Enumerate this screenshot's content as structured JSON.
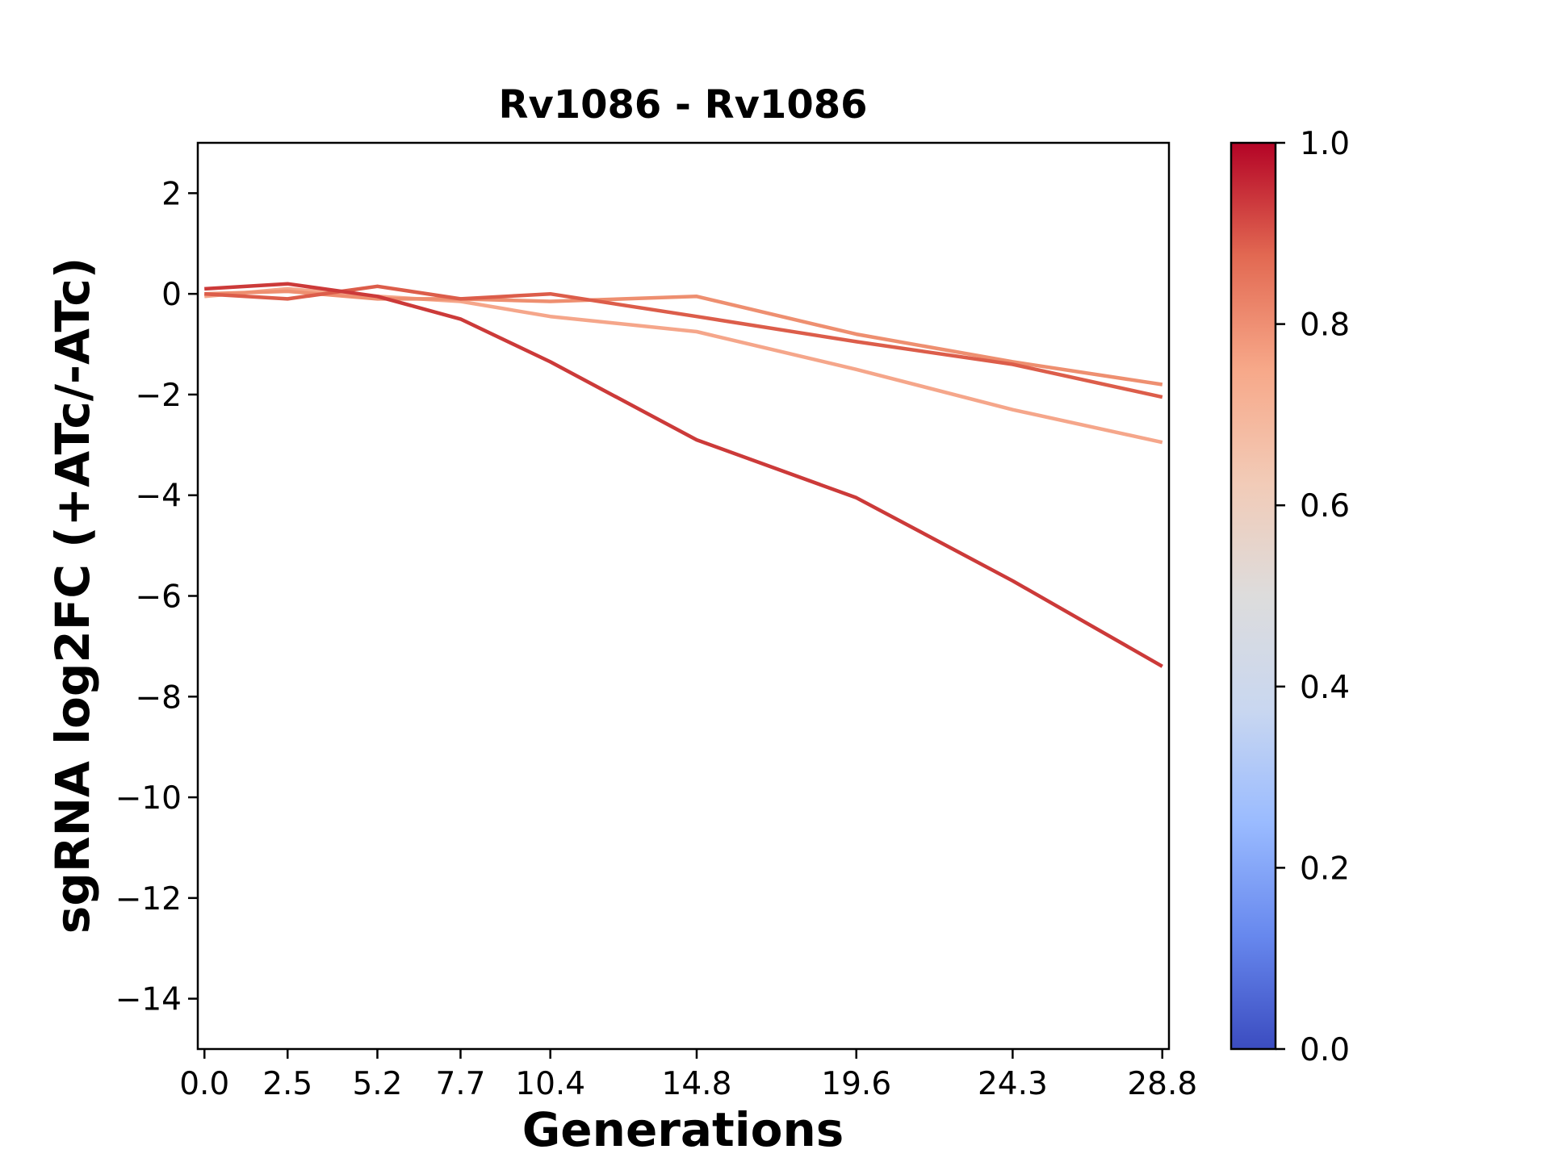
{
  "chart_data": {
    "type": "line",
    "title": "Rv1086 - Rv1086",
    "xlabel": "Generations",
    "ylabel": "sgRNA log2FC (+ATc/-ATc)",
    "x": [
      0.0,
      2.5,
      5.2,
      7.7,
      10.4,
      14.8,
      19.6,
      24.3,
      28.8
    ],
    "x_tick_labels": [
      "0.0",
      "2.5",
      "5.2",
      "7.7",
      "10.4",
      "14.8",
      "19.6",
      "24.3",
      "28.8"
    ],
    "xlim": [
      -0.2,
      29.0
    ],
    "ylim": [
      -15,
      3
    ],
    "y_ticks": [
      2,
      0,
      -2,
      -4,
      -6,
      -8,
      -10,
      -12,
      -14
    ],
    "y_tick_labels": [
      "2",
      "0",
      "−2",
      "−4",
      "−6",
      "−8",
      "−10",
      "−12",
      "−14"
    ],
    "grid": false,
    "series": [
      {
        "color_value": 0.72,
        "color": "#f5a68a",
        "values": [
          -0.05,
          0.1,
          -0.05,
          -0.15,
          -0.45,
          -0.75,
          -1.5,
          -2.3,
          -2.95
        ]
      },
      {
        "color_value": 0.78,
        "color": "#ee8f70",
        "values": [
          0.0,
          0.05,
          -0.1,
          -0.1,
          -0.15,
          -0.05,
          -0.8,
          -1.35,
          -1.8
        ]
      },
      {
        "color_value": 0.88,
        "color": "#dc5d4a",
        "values": [
          0.0,
          -0.1,
          0.15,
          -0.1,
          0.0,
          -0.45,
          -0.95,
          -1.4,
          -2.05
        ]
      },
      {
        "color_value": 0.93,
        "color": "#cc3a39",
        "values": [
          0.1,
          0.2,
          -0.05,
          -0.5,
          -1.35,
          -2.9,
          -4.05,
          -5.7,
          -7.4
        ]
      }
    ],
    "colorbar": {
      "colormap": "coolwarm",
      "range": [
        0.0,
        1.0
      ],
      "ticks": [
        0.0,
        0.2,
        0.4,
        0.6,
        0.8,
        1.0
      ],
      "tick_labels": [
        "0.0",
        "0.2",
        "0.4",
        "0.6",
        "0.8",
        "1.0"
      ],
      "colors": [
        "#3b4cc0",
        "#6788ee",
        "#9abbff",
        "#c9d7f0",
        "#dddcdc",
        "#f2cbb7",
        "#f7a889",
        "#e26952",
        "#b40426"
      ]
    }
  }
}
